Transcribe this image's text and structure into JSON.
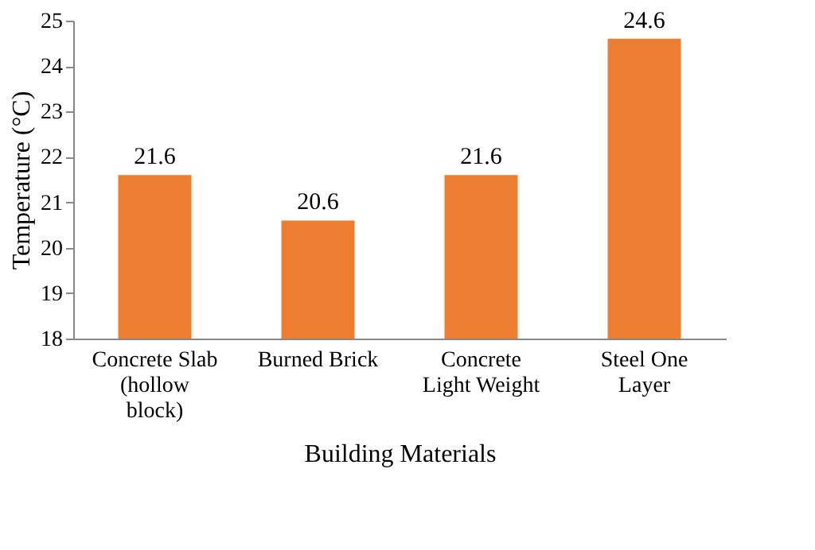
{
  "chart_data": {
    "type": "bar",
    "xlabel": "Building Materials",
    "ylabel": "Temperature (°C)",
    "categories": [
      "Concrete Slab (hollow block)",
      "Burned Brick",
      "Concrete Light Weight",
      "Steel One Layer"
    ],
    "values": [
      21.6,
      20.6,
      21.6,
      24.6
    ],
    "color": "#ed7d31",
    "ylim": [
      18,
      25
    ],
    "yticks": [
      18,
      19,
      20,
      21,
      22,
      23,
      24,
      25
    ],
    "grid": false,
    "data_labels": true
  }
}
